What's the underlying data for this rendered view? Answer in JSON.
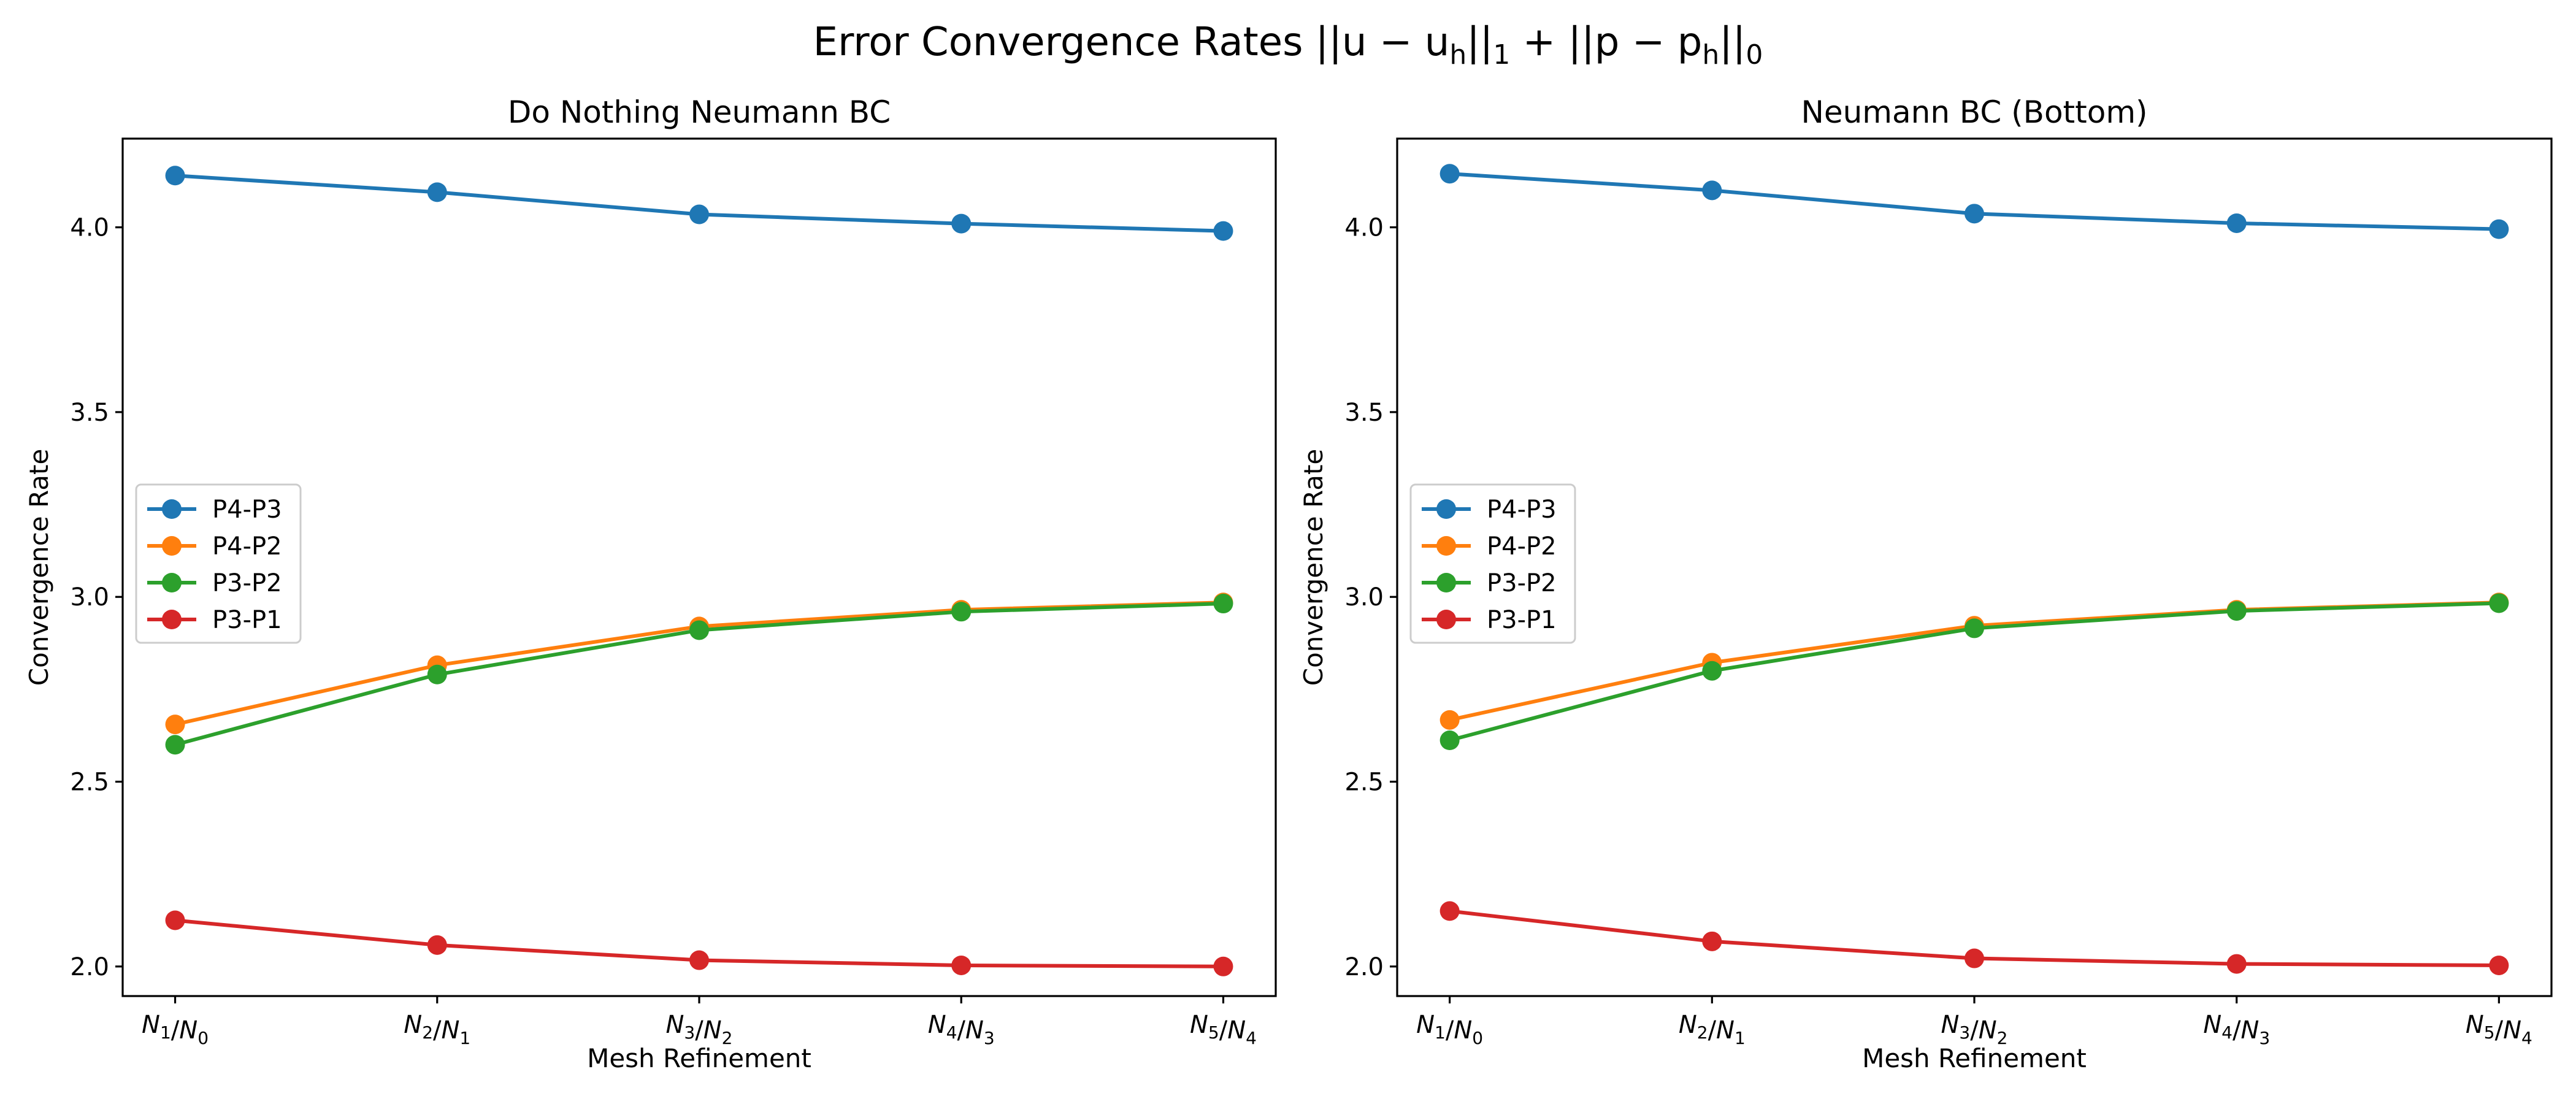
{
  "figure": {
    "suptitle": "Error Convergence Rates ||u − u_h||_1 + ||p − p_h||_0"
  },
  "chart_data": [
    {
      "type": "line",
      "title": "Do Nothing Neumann BC",
      "xlabel": "Mesh Refinement",
      "ylabel": "Convergence Rate",
      "categories": [
        "N1/N0",
        "N2/N1",
        "N3/N2",
        "N4/N3",
        "N5/N4"
      ],
      "ylim": [
        1.92,
        4.24
      ],
      "yticks": [
        2.0,
        2.5,
        3.0,
        3.5,
        4.0
      ],
      "legend_position": "center-left",
      "series": [
        {
          "name": "P4-P3",
          "color": "#1f77b4",
          "values": [
            4.14,
            4.095,
            4.035,
            4.01,
            3.99
          ]
        },
        {
          "name": "P4-P2",
          "color": "#ff7f0e",
          "values": [
            2.655,
            2.815,
            2.92,
            2.965,
            2.985
          ]
        },
        {
          "name": "P3-P2",
          "color": "#2ca02c",
          "values": [
            2.6,
            2.79,
            2.91,
            2.96,
            2.982
          ]
        },
        {
          "name": "P3-P1",
          "color": "#d62728",
          "values": [
            2.125,
            2.058,
            2.017,
            2.003,
            2.0
          ]
        }
      ]
    },
    {
      "type": "line",
      "title": "Neumann BC (Bottom)",
      "xlabel": "Mesh Refinement",
      "ylabel": "Convergence Rate",
      "categories": [
        "N1/N0",
        "N2/N1",
        "N3/N2",
        "N4/N3",
        "N5/N4"
      ],
      "ylim": [
        1.92,
        4.24
      ],
      "yticks": [
        2.0,
        2.5,
        3.0,
        3.5,
        4.0
      ],
      "legend_position": "center-left",
      "series": [
        {
          "name": "P4-P3",
          "color": "#1f77b4",
          "values": [
            4.145,
            4.1,
            4.037,
            4.011,
            3.995
          ]
        },
        {
          "name": "P4-P2",
          "color": "#ff7f0e",
          "values": [
            2.667,
            2.822,
            2.922,
            2.965,
            2.985
          ]
        },
        {
          "name": "P3-P2",
          "color": "#2ca02c",
          "values": [
            2.612,
            2.8,
            2.915,
            2.962,
            2.983
          ]
        },
        {
          "name": "P3-P1",
          "color": "#d62728",
          "values": [
            2.15,
            2.068,
            2.022,
            2.007,
            2.003
          ]
        }
      ]
    }
  ]
}
